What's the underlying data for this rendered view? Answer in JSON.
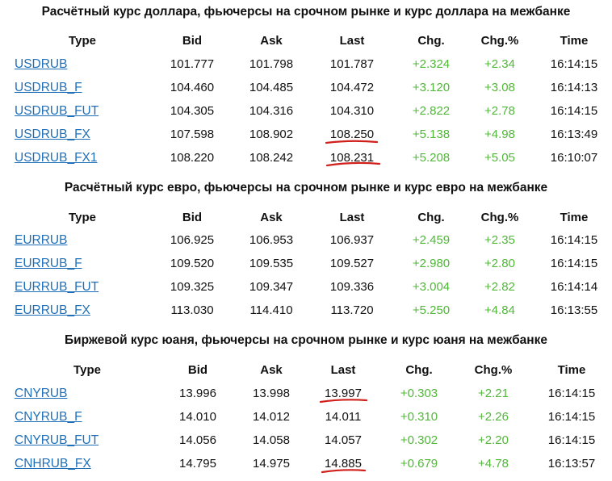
{
  "sections": [
    {
      "title": "Расчётный курс доллара, фьючерсы на срочном рынке и курс доллара на межбанке",
      "headers": {
        "type": "Type",
        "bid": "Bid",
        "ask": "Ask",
        "last": "Last",
        "chg": "Chg.",
        "chg_pct": "Chg.%",
        "time": "Time"
      },
      "rows": [
        {
          "type": "USDRUB",
          "bid": "101.777",
          "ask": "101.798",
          "last": "101.787",
          "chg": "+2.324",
          "chg_pct": "+2.34",
          "time": "16:14:15"
        },
        {
          "type": "USDRUB_F",
          "bid": "104.460",
          "ask": "104.485",
          "last": "104.472",
          "chg": "+3.120",
          "chg_pct": "+3.08",
          "time": "16:14:13"
        },
        {
          "type": "USDRUB_FUT",
          "bid": "104.305",
          "ask": "104.316",
          "last": "104.310",
          "chg": "+2.822",
          "chg_pct": "+2.78",
          "time": "16:14:15"
        },
        {
          "type": "USDRUB_FX",
          "bid": "107.598",
          "ask": "108.902",
          "last": "108.250",
          "chg": "+5.138",
          "chg_pct": "+4.98",
          "time": "16:13:49"
        },
        {
          "type": "USDRUB_FX1",
          "bid": "108.220",
          "ask": "108.242",
          "last": "108.231",
          "chg": "+5.208",
          "chg_pct": "+5.05",
          "time": "16:10:07"
        }
      ]
    },
    {
      "title": "Расчётный курс евро, фьючерсы на срочном рынке и курс евро на межбанке",
      "headers": {
        "type": "Type",
        "bid": "Bid",
        "ask": "Ask",
        "last": "Last",
        "chg": "Chg.",
        "chg_pct": "Chg.%",
        "time": "Time"
      },
      "rows": [
        {
          "type": "EURRUB",
          "bid": "106.925",
          "ask": "106.953",
          "last": "106.937",
          "chg": "+2.459",
          "chg_pct": "+2.35",
          "time": "16:14:15"
        },
        {
          "type": "EURRUB_F",
          "bid": "109.520",
          "ask": "109.535",
          "last": "109.527",
          "chg": "+2.980",
          "chg_pct": "+2.80",
          "time": "16:14:15"
        },
        {
          "type": "EURRUB_FUT",
          "bid": "109.325",
          "ask": "109.347",
          "last": "109.336",
          "chg": "+3.004",
          "chg_pct": "+2.82",
          "time": "16:14:14"
        },
        {
          "type": "EURRUB_FX",
          "bid": "113.030",
          "ask": "114.410",
          "last": "113.720",
          "chg": "+5.250",
          "chg_pct": "+4.84",
          "time": "16:13:55"
        }
      ]
    },
    {
      "title": "Биржевой курс юаня, фьючерсы на срочном рынке и курс юаня на межбанке",
      "headers": {
        "type": "Type",
        "bid": "Bid",
        "ask": "Ask",
        "last": "Last",
        "chg": "Chg.",
        "chg_pct": "Chg.%",
        "time": "Time"
      },
      "rows": [
        {
          "type": "CNYRUB",
          "bid": "13.996",
          "ask": "13.998",
          "last": "13.997",
          "chg": "+0.303",
          "chg_pct": "+2.21",
          "time": "16:14:15"
        },
        {
          "type": "CNYRUB_F",
          "bid": "14.010",
          "ask": "14.012",
          "last": "14.011",
          "chg": "+0.310",
          "chg_pct": "+2.26",
          "time": "16:14:15"
        },
        {
          "type": "CNYRUB_FUT",
          "bid": "14.056",
          "ask": "14.058",
          "last": "14.057",
          "chg": "+0.302",
          "chg_pct": "+2.20",
          "time": "16:14:15"
        },
        {
          "type": "CNHRUB_FX",
          "bid": "14.795",
          "ask": "14.975",
          "last": "14.885",
          "chg": "+0.679",
          "chg_pct": "+4.78",
          "time": "16:13:57"
        }
      ]
    }
  ],
  "colors": {
    "link": "#1f6fb8",
    "positive": "#52b73a",
    "annotation": "#d0201c"
  }
}
